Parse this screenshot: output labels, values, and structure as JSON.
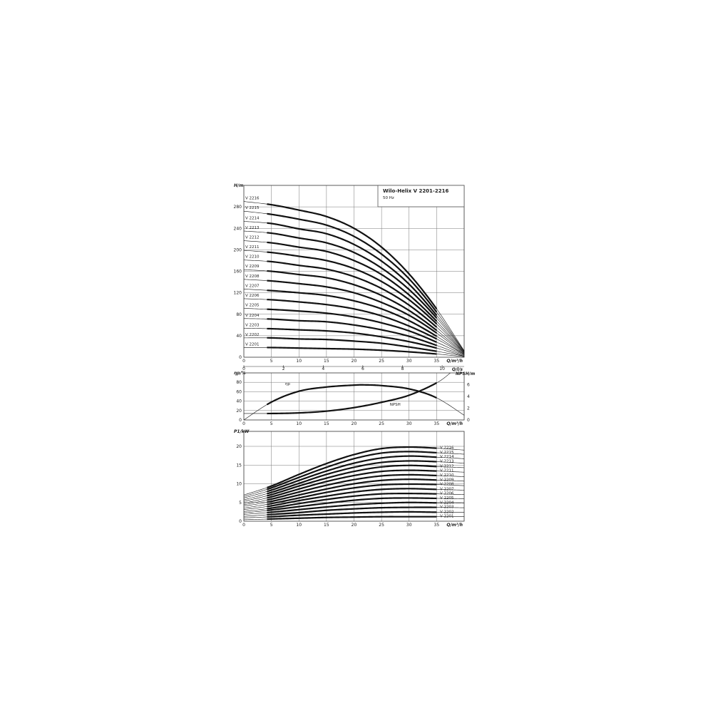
{
  "title": "Wilo-Helix V 2201-2216",
  "subtitle": "50 Hz",
  "chart_data": [
    {
      "type": "line",
      "ylabel": "H/m",
      "xlabel": "Q/m³/h",
      "xlim": [
        0,
        40
      ],
      "ylim": [
        0,
        320
      ],
      "xticks": [
        0,
        5,
        10,
        15,
        20,
        25,
        30,
        35
      ],
      "yticks": [
        0,
        40,
        80,
        120,
        160,
        200,
        240,
        280
      ],
      "secondary_x": {
        "label": "Q/l/s",
        "ticks": [
          0,
          2,
          4,
          6,
          8,
          10
        ]
      },
      "grid": true,
      "x": [
        0,
        5,
        10,
        15,
        20,
        25,
        30,
        35,
        40
      ],
      "series": [
        {
          "name": "V 2201",
          "values": [
            18,
            18,
            17,
            16,
            15,
            13,
            10,
            6,
            1
          ]
        },
        {
          "name": "V 2202",
          "values": [
            36,
            36,
            34,
            33,
            30,
            26,
            19,
            11,
            2
          ]
        },
        {
          "name": "V 2203",
          "values": [
            54,
            53,
            51,
            49,
            45,
            38,
            29,
            17,
            2
          ]
        },
        {
          "name": "V 2204",
          "values": [
            72,
            71,
            68,
            66,
            60,
            51,
            39,
            22,
            3
          ]
        },
        {
          "name": "V 2205",
          "values": [
            91,
            89,
            86,
            82,
            75,
            64,
            49,
            28,
            4
          ]
        },
        {
          "name": "V 2206",
          "values": [
            109,
            107,
            103,
            98,
            90,
            77,
            58,
            34,
            5
          ]
        },
        {
          "name": "V 2207",
          "values": [
            127,
            124,
            120,
            115,
            105,
            90,
            68,
            39,
            5
          ]
        },
        {
          "name": "V 2208",
          "values": [
            145,
            142,
            137,
            131,
            120,
            102,
            78,
            45,
            6
          ]
        },
        {
          "name": "V 2209",
          "values": [
            163,
            160,
            154,
            148,
            135,
            115,
            87,
            50,
            7
          ]
        },
        {
          "name": "V 2210",
          "values": [
            181,
            178,
            171,
            164,
            150,
            128,
            97,
            56,
            8
          ]
        },
        {
          "name": "V 2211",
          "values": [
            199,
            195,
            188,
            180,
            165,
            141,
            107,
            62,
            8
          ]
        },
        {
          "name": "V 2212",
          "values": [
            217,
            213,
            205,
            197,
            180,
            154,
            116,
            67,
            9
          ]
        },
        {
          "name": "V 2213",
          "values": [
            235,
            231,
            222,
            213,
            195,
            166,
            126,
            73,
            10
          ]
        },
        {
          "name": "V 2214",
          "values": [
            253,
            249,
            239,
            230,
            210,
            179,
            136,
            78,
            11
          ]
        },
        {
          "name": "V 2215",
          "values": [
            272,
            266,
            257,
            246,
            225,
            192,
            146,
            84,
            11
          ]
        },
        {
          "name": "V 2216",
          "values": [
            290,
            284,
            274,
            262,
            240,
            205,
            155,
            90,
            12
          ]
        }
      ]
    },
    {
      "type": "line",
      "ylabel": "ηp/%",
      "ylabel_right": "NPSH/m",
      "xlabel": "Q/m³/h",
      "xlim": [
        0,
        40
      ],
      "ylim": [
        0,
        100
      ],
      "ylim_right": [
        0,
        8
      ],
      "xticks": [
        0,
        5,
        10,
        15,
        20,
        25,
        30,
        35
      ],
      "yticks": [
        0,
        20,
        40,
        60,
        80
      ],
      "yticks_right": [
        0,
        2,
        4,
        6
      ],
      "grid": true,
      "series": [
        {
          "name": "ηp",
          "axis": "left",
          "x": [
            0,
            5,
            10,
            15,
            20,
            22,
            25,
            30,
            35,
            40
          ],
          "values": [
            0,
            38,
            61,
            70,
            74,
            74.5,
            73,
            66,
            47,
            10
          ]
        },
        {
          "name": "NPSH",
          "axis": "right",
          "x": [
            0,
            5,
            10,
            15,
            20,
            25,
            30,
            35,
            37.5
          ],
          "values": [
            1.1,
            1.1,
            1.2,
            1.5,
            2.1,
            3.0,
            4.2,
            6.3,
            8
          ]
        }
      ]
    },
    {
      "type": "line",
      "ylabel": "P1/kW",
      "xlabel": "Q/m³/h",
      "xlim": [
        0,
        40
      ],
      "ylim": [
        0,
        24
      ],
      "xticks": [
        0,
        5,
        10,
        15,
        20,
        25,
        30,
        35
      ],
      "yticks": [
        0,
        5,
        10,
        15,
        20
      ],
      "grid": true,
      "x": [
        0,
        5,
        10,
        15,
        20,
        25,
        30,
        35,
        40
      ],
      "series": [
        {
          "name": "V 2201",
          "values": [
            0.4,
            0.6,
            0.8,
            1.0,
            1.1,
            1.2,
            1.2,
            1.2,
            1.2
          ]
        },
        {
          "name": "V 2202",
          "values": [
            0.9,
            1.2,
            1.6,
            1.9,
            2.2,
            2.4,
            2.5,
            2.4,
            2.4
          ]
        },
        {
          "name": "V 2203",
          "values": [
            1.3,
            1.8,
            2.3,
            2.9,
            3.3,
            3.6,
            3.7,
            3.7,
            3.6
          ]
        },
        {
          "name": "V 2204",
          "values": [
            1.8,
            2.4,
            3.1,
            3.8,
            4.4,
            4.8,
            5.0,
            4.9,
            4.8
          ]
        },
        {
          "name": "V 2205",
          "values": [
            2.2,
            3.0,
            3.9,
            4.8,
            5.6,
            6.1,
            6.2,
            6.1,
            6.0
          ]
        },
        {
          "name": "V 2206",
          "values": [
            2.6,
            3.5,
            4.7,
            5.8,
            6.7,
            7.3,
            7.4,
            7.3,
            7.1
          ]
        },
        {
          "name": "V 2207",
          "values": [
            3.1,
            4.1,
            5.5,
            6.7,
            7.8,
            8.5,
            8.7,
            8.5,
            8.3
          ]
        },
        {
          "name": "V 2208",
          "values": [
            3.5,
            4.7,
            6.2,
            7.7,
            8.9,
            9.7,
            9.9,
            9.8,
            9.5
          ]
        },
        {
          "name": "V 2209",
          "values": [
            4.0,
            5.3,
            7.0,
            8.6,
            10.0,
            10.9,
            11.2,
            11.0,
            10.7
          ]
        },
        {
          "name": "V 2210",
          "values": [
            4.4,
            5.9,
            7.8,
            9.6,
            11.1,
            12.1,
            12.4,
            12.2,
            11.9
          ]
        },
        {
          "name": "V 2211",
          "values": [
            4.8,
            6.5,
            8.6,
            10.6,
            12.2,
            13.3,
            13.6,
            13.4,
            13.1
          ]
        },
        {
          "name": "V 2212",
          "values": [
            5.3,
            7.1,
            9.4,
            11.5,
            13.3,
            14.5,
            14.9,
            14.6,
            14.3
          ]
        },
        {
          "name": "V 2213",
          "values": [
            5.7,
            7.7,
            10.1,
            12.5,
            14.4,
            15.7,
            16.1,
            15.9,
            15.5
          ]
        },
        {
          "name": "V 2214",
          "values": [
            6.2,
            8.3,
            10.9,
            13.4,
            15.5,
            16.9,
            17.4,
            17.1,
            16.7
          ]
        },
        {
          "name": "V 2215",
          "values": [
            6.6,
            8.9,
            11.7,
            14.4,
            16.7,
            18.2,
            18.6,
            18.3,
            17.9
          ]
        },
        {
          "name": "V 2216",
          "values": [
            7.0,
            9.4,
            12.5,
            15.4,
            17.8,
            19.4,
            19.8,
            19.5,
            19.0
          ]
        }
      ]
    }
  ]
}
